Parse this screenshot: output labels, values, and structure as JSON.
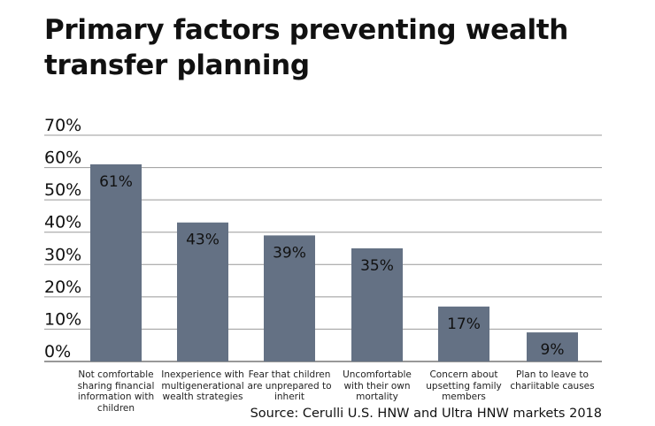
{
  "chart_data": {
    "type": "bar",
    "title": "Primary factors preventing wealth transfer planning",
    "categories": [
      "Not comfortable sharing financial information with children",
      "Inexperience with multigenerational wealth strategies",
      "Fear that children are unprepared to inherit",
      "Uncomfortable with their own mortality",
      "Concern about upsetting family members",
      "Plan to leave to chariitable causes"
    ],
    "values": [
      61,
      43,
      39,
      35,
      17,
      9
    ],
    "data_labels": [
      "61%",
      "43%",
      "39%",
      "35%",
      "17%",
      "9%"
    ],
    "yticks": [
      "0%",
      "10%",
      "20%",
      "30%",
      "40%",
      "50%",
      "60%",
      "70%"
    ],
    "ylim": [
      0,
      70
    ],
    "grid": true,
    "bar_color": "#647184",
    "source": "Source: Cerulli U.S. HNW and Ultra HNW markets 2018"
  }
}
